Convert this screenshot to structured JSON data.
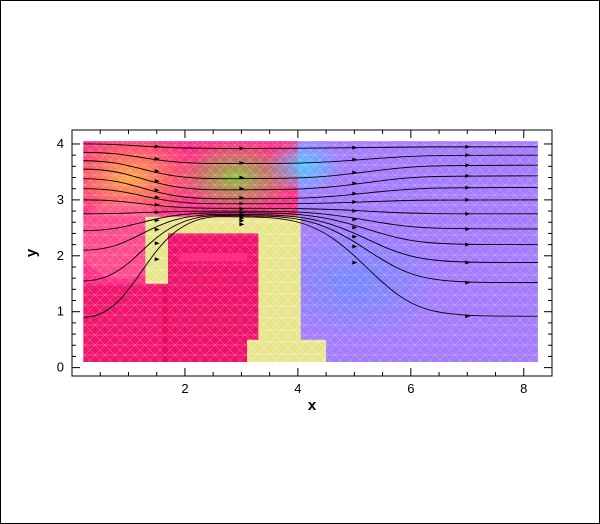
{
  "chart_data": {
    "type": "contour-mesh-streamlines",
    "xlabel": "x",
    "ylabel": "y",
    "xlim": [
      0,
      8.5
    ],
    "ylim": [
      -0.15,
      4.25
    ],
    "x_ticks": [
      2,
      4,
      6,
      8
    ],
    "y_ticks": [
      0,
      1,
      2,
      3,
      4
    ],
    "x_tick_labels": [
      "2",
      "4",
      "6",
      "8"
    ],
    "y_tick_labels": [
      "0",
      "1",
      "2",
      "3",
      "4"
    ],
    "domain": {
      "x": [
        0.2,
        8.25
      ],
      "y": [
        0.1,
        4.05
      ]
    },
    "obstacle_outline": [
      [
        1.3,
        2.7
      ],
      [
        4.05,
        2.7
      ],
      [
        4.05,
        0.5
      ],
      [
        4.5,
        0.5
      ],
      [
        4.5,
        0.1
      ],
      [
        3.1,
        0.1
      ],
      [
        3.1,
        0.5
      ],
      [
        3.3,
        0.5
      ],
      [
        3.3,
        2.4
      ],
      [
        1.7,
        2.4
      ],
      [
        1.7,
        1.5
      ],
      [
        1.3,
        1.5
      ]
    ],
    "obstacle_notch": [
      [
        1.9,
        2.05
      ],
      [
        3.1,
        2.05
      ],
      [
        3.1,
        1.9
      ],
      [
        1.9,
        1.9
      ]
    ],
    "streamlines": [
      {
        "y_in": 4.0,
        "y_dip": 3.92,
        "y_out": 3.95
      },
      {
        "y_in": 3.85,
        "y_dip": 3.65,
        "y_out": 3.8
      },
      {
        "y_in": 3.7,
        "y_dip": 3.38,
        "y_out": 3.62
      },
      {
        "y_in": 3.55,
        "y_dip": 3.18,
        "y_out": 3.43
      },
      {
        "y_in": 3.38,
        "y_dip": 3.02,
        "y_out": 3.22
      },
      {
        "y_in": 3.2,
        "y_dip": 2.93,
        "y_out": 3.0
      },
      {
        "y_in": 3.0,
        "y_dip": 2.85,
        "y_out": 2.75
      },
      {
        "y_in": 2.75,
        "y_dip": 2.8,
        "y_out": 2.48
      },
      {
        "y_in": 2.45,
        "y_dip": 2.77,
        "y_out": 2.2
      },
      {
        "y_in": 2.1,
        "y_dip": 2.74,
        "y_out": 1.88
      },
      {
        "y_in": 1.55,
        "y_dip": 2.72,
        "y_out": 1.52
      },
      {
        "y_in": 0.9,
        "y_dip": 2.7,
        "y_out": 0.92
      }
    ],
    "colors": {
      "left_region": "#ff2e86",
      "left_dark": "#e5005a",
      "top_orange": "#ff9b3c",
      "top_green": "#84c83a",
      "top_cyan": "#4ec9ff",
      "right_region": "#9a6bff",
      "right_light": "#b08cff",
      "right_blue": "#6f8bff",
      "obstacle": "#e8e58a",
      "mesh_line": "#ffffff",
      "streamline": "#000000"
    }
  }
}
